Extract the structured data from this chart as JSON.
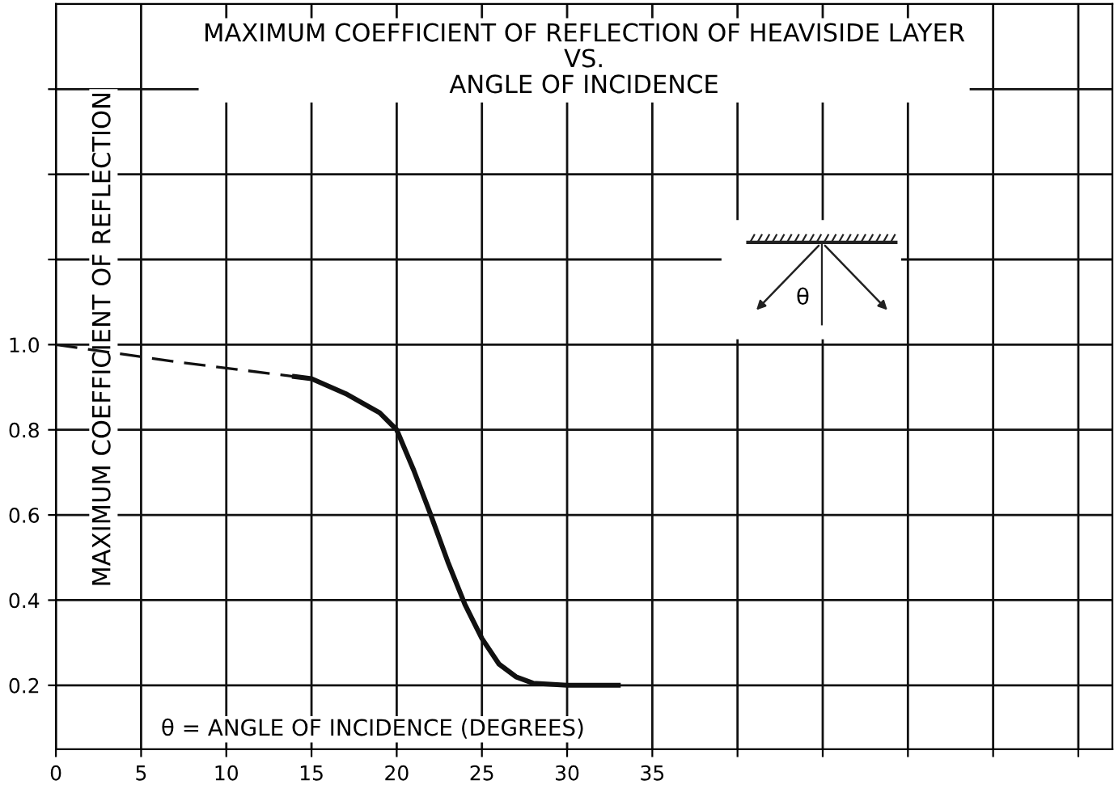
{
  "chart_data": {
    "type": "line",
    "title": "MAXIMUM COEFFICIENT OF REFLECTION OF HEAVISIDE LAYER\nVS.\nANGLE OF INCIDENCE",
    "xlabel": "θ = ANGLE OF INCIDENCE (DEGREES)",
    "ylabel": "MAXIMUM COEFFICIENT OF REFLECTION",
    "series": [
      {
        "color": "#111111",
        "line_style": "dashed",
        "x": [
          0,
          7,
          14
        ],
        "values": [
          1.0,
          0.96,
          0.925
        ]
      },
      {
        "color": "#111111",
        "line_style": "solid",
        "x": [
          14,
          15,
          17,
          19,
          20,
          21,
          22,
          23,
          24,
          25,
          26,
          27,
          28,
          30,
          33
        ],
        "values": [
          0.925,
          0.92,
          0.885,
          0.84,
          0.8,
          0.705,
          0.6,
          0.49,
          0.39,
          0.31,
          0.25,
          0.22,
          0.205,
          0.2,
          0.2
        ]
      }
    ],
    "xlim": [
      0,
      62
    ],
    "ylim": [
      0.05,
      1.8
    ],
    "xticks": [
      0,
      5,
      10,
      15,
      20,
      25,
      30,
      35,
      {
        "value": 40,
        "label": null
      },
      {
        "value": 45,
        "label": null
      },
      {
        "value": 50,
        "label": null
      },
      {
        "value": 55,
        "label": null
      },
      {
        "value": 60,
        "label": null
      }
    ],
    "yticks": [
      0.2,
      0.4,
      0.6,
      0.8,
      {
        "value": 1.0,
        "label": "1.0"
      },
      {
        "value": 1.2,
        "label": null
      },
      {
        "value": 1.4,
        "label": null
      },
      {
        "value": 1.6,
        "label": null
      }
    ],
    "grid": true,
    "marker": "none",
    "annotations": [
      "θ"
    ]
  }
}
